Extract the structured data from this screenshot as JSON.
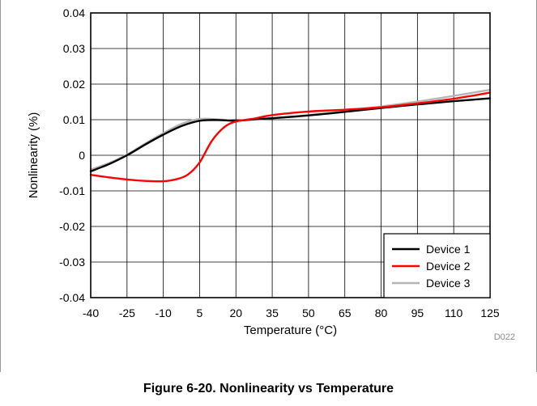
{
  "caption": "Figure 6-20. Nonlinearity vs Temperature",
  "figure_code": "D022",
  "chart_data": {
    "type": "line",
    "xlabel": "Temperature (°C)",
    "ylabel": "Nonlinearity (%)",
    "xlim": [
      -40,
      125
    ],
    "ylim": [
      -0.04,
      0.04
    ],
    "x_ticks": [
      "-40",
      "-25",
      "-10",
      "5",
      "20",
      "35",
      "50",
      "65",
      "80",
      "95",
      "110",
      "125"
    ],
    "y_ticks": [
      "0.04",
      "0.03",
      "0.02",
      "0.01",
      "0",
      "-0.01",
      "-0.02",
      "-0.03",
      "-0.04"
    ],
    "grid": true,
    "legend_position": "bottom-right",
    "series": [
      {
        "name": "Device 1",
        "color": "#000000",
        "points": [
          [
            -40,
            -0.0045
          ],
          [
            -32.5,
            -0.0025
          ],
          [
            -25,
            0.0
          ],
          [
            -17.5,
            0.003
          ],
          [
            -10,
            0.0058
          ],
          [
            -2.5,
            0.0082
          ],
          [
            5,
            0.0097
          ],
          [
            12.5,
            0.0099
          ],
          [
            20,
            0.0097
          ],
          [
            27.5,
            0.0101
          ],
          [
            35,
            0.0104
          ],
          [
            50,
            0.0112
          ],
          [
            65,
            0.0122
          ],
          [
            80,
            0.0133
          ],
          [
            95,
            0.0143
          ],
          [
            110,
            0.0152
          ],
          [
            125,
            0.016
          ]
        ]
      },
      {
        "name": "Device 2",
        "color": "#ff0000",
        "points": [
          [
            -40,
            -0.0055
          ],
          [
            -32.5,
            -0.0062
          ],
          [
            -25,
            -0.0068
          ],
          [
            -17.5,
            -0.0072
          ],
          [
            -10,
            -0.0073
          ],
          [
            -5,
            -0.0068
          ],
          [
            0,
            -0.0055
          ],
          [
            5,
            -0.002
          ],
          [
            10,
            0.004
          ],
          [
            15,
            0.0078
          ],
          [
            20,
            0.0095
          ],
          [
            27.5,
            0.0103
          ],
          [
            35,
            0.0113
          ],
          [
            50,
            0.0123
          ],
          [
            65,
            0.0128
          ],
          [
            80,
            0.0135
          ],
          [
            95,
            0.0146
          ],
          [
            110,
            0.0159
          ],
          [
            125,
            0.0176
          ]
        ]
      },
      {
        "name": "Device 3",
        "color": "#b5b5b5",
        "points": [
          [
            -40,
            -0.004
          ],
          [
            -32.5,
            -0.0022
          ],
          [
            -25,
            0.0002
          ],
          [
            -17.5,
            0.0033
          ],
          [
            -10,
            0.0062
          ],
          [
            -2.5,
            0.0088
          ],
          [
            5,
            0.0102
          ],
          [
            12.5,
            0.0101
          ],
          [
            20,
            0.0097
          ],
          [
            27.5,
            0.0101
          ],
          [
            35,
            0.0104
          ],
          [
            50,
            0.0113
          ],
          [
            65,
            0.0124
          ],
          [
            80,
            0.0137
          ],
          [
            95,
            0.0151
          ],
          [
            110,
            0.0167
          ],
          [
            125,
            0.0184
          ]
        ]
      }
    ]
  }
}
